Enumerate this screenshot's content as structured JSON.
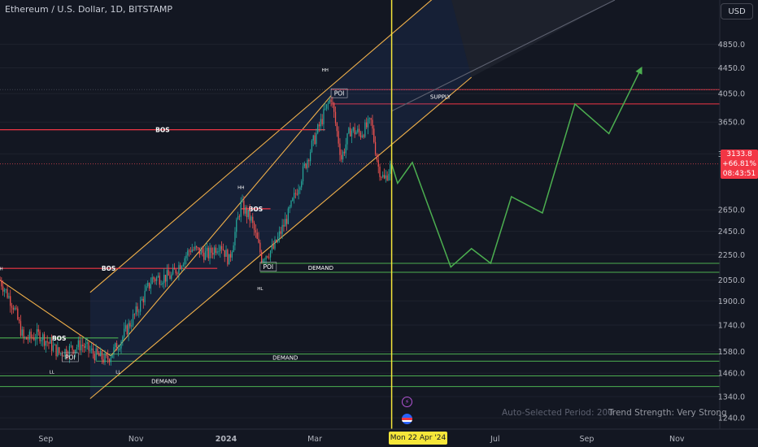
{
  "header": {
    "title": "Ethereum / U.S. Dollar, 1D, BITSTAMP",
    "currency": "USD"
  },
  "price_badge": {
    "price": "3133.8",
    "change": "+66.81%",
    "countdown": "08:43:51"
  },
  "crosshair": {
    "date_label": "Mon 22 Apr '24"
  },
  "footer": {
    "period": "Auto-Selected Period: 200",
    "trend": "Trend Strength: Very Strong"
  },
  "colors": {
    "background": "#131722",
    "bull": "#26a69a",
    "bear": "#ef5350",
    "channel": "#f0b04a",
    "projection": "#4caf50",
    "bos_red": "#f23645",
    "zone_green": "#4caf50",
    "crosshair": "#f5e63a"
  },
  "icons": {
    "event_1": "lightning-icon",
    "event_2": "flag-icon"
  },
  "chart_data": {
    "type": "candlestick",
    "symbol": "Ethereum / U.S. Dollar",
    "interval": "1D",
    "exchange": "BITSTAMP",
    "x_axis": {
      "type": "date",
      "range": [
        "2023-08-01",
        "2024-11-30"
      ],
      "ticks": [
        "Sep",
        "Nov",
        "2024",
        "Mar",
        "Jul",
        "Sep",
        "Nov"
      ]
    },
    "y_axis": {
      "scale": "log",
      "range": [
        1190,
        5700
      ],
      "ticks": [
        1240,
        1340,
        1460,
        1580,
        1740,
        1900,
        2050,
        2250,
        2450,
        2650,
        3250,
        3650,
        4050,
        4450,
        4850
      ]
    },
    "price_path": [
      [
        "2023-08-01",
        2050
      ],
      [
        "2023-08-10",
        1870
      ],
      [
        "2023-08-17",
        1650
      ],
      [
        "2023-08-28",
        1680
      ],
      [
        "2023-09-10",
        1570
      ],
      [
        "2023-09-25",
        1620
      ],
      [
        "2023-10-05",
        1560
      ],
      [
        "2023-10-12",
        1530
      ],
      [
        "2023-10-20",
        1620
      ],
      [
        "2023-11-01",
        1820
      ],
      [
        "2023-11-12",
        2060
      ],
      [
        "2023-11-25",
        2080
      ],
      [
        "2023-12-08",
        2300
      ],
      [
        "2023-12-20",
        2250
      ],
      [
        "2023-12-28",
        2350
      ],
      [
        "2024-01-03",
        2200
      ],
      [
        "2024-01-11",
        2700
      ],
      [
        "2024-01-18",
        2550
      ],
      [
        "2024-01-25",
        2230
      ],
      [
        "2024-02-02",
        2300
      ],
      [
        "2024-02-12",
        2600
      ],
      [
        "2024-02-20",
        2950
      ],
      [
        "2024-02-28",
        3350
      ],
      [
        "2024-03-08",
        3800
      ],
      [
        "2024-03-12",
        4000
      ],
      [
        "2024-03-19",
        3200
      ],
      [
        "2024-03-25",
        3550
      ],
      [
        "2024-04-01",
        3500
      ],
      [
        "2024-04-08",
        3650
      ],
      [
        "2024-04-13",
        3100
      ],
      [
        "2024-04-17",
        2950
      ],
      [
        "2024-04-22",
        3133.8
      ]
    ],
    "channel": {
      "upper": [
        [
          "2023-10-01",
          1960
        ],
        [
          "2024-05-30",
          6000
        ]
      ],
      "lower": [
        [
          "2023-10-01",
          1330
        ],
        [
          "2024-06-15",
          4300
        ]
      ],
      "outer": [
        [
          "2024-04-22",
          3800
        ],
        [
          "2024-09-20",
          5700
        ]
      ],
      "inner_trendline": [
        [
          "2023-10-15",
          1555
        ],
        [
          "2024-03-12",
          4020
        ]
      ],
      "downtrend": [
        [
          "2023-08-01",
          2050
        ],
        [
          "2023-10-15",
          1555
        ]
      ]
    },
    "levels": [
      {
        "label": "BOS",
        "price": 2140,
        "from": "2023-08-01",
        "to": "2023-12-26",
        "color": "#f23645"
      },
      {
        "label": "BOS",
        "price": 1660,
        "from": "2023-08-01",
        "to": "2023-10-20",
        "color": "#4caf50"
      },
      {
        "label": "BOS",
        "price": 3550,
        "from": "2023-08-01",
        "to": "2024-03-08",
        "color": "#f23645"
      },
      {
        "label": "BOS",
        "price": 2660,
        "from": "2024-01-11",
        "to": "2024-01-31",
        "color": "#f23645"
      }
    ],
    "zones": [
      {
        "label": "SUPPLY",
        "top": 4110,
        "bottom": 3900,
        "from": "2024-03-12",
        "to": "2024-11-30",
        "color": "#f23645"
      },
      {
        "label": "DEMAND",
        "top": 2180,
        "bottom": 2110,
        "from": "2024-01-24",
        "to": "2024-11-30",
        "color": "#4caf50"
      },
      {
        "label": "DEMAND",
        "top": 1565,
        "bottom": 1525,
        "from": "2023-10-05",
        "to": "2024-11-30",
        "color": "#4caf50"
      },
      {
        "label": "DEMAND",
        "top": 1445,
        "bottom": 1390,
        "from": "2023-08-01",
        "to": "2024-11-30",
        "color": "#4caf50"
      }
    ],
    "annotations": [
      {
        "text": "HH",
        "date": "2024-03-08",
        "price": 4420
      },
      {
        "text": "HH",
        "date": "2024-01-11",
        "price": 2880
      },
      {
        "text": "HL",
        "date": "2024-01-24",
        "price": 1990
      },
      {
        "text": "LL",
        "date": "2023-09-05",
        "price": 1470
      },
      {
        "text": "LL",
        "date": "2023-10-20",
        "price": 1470
      },
      {
        "text": "LH",
        "date": "2023-08-01",
        "price": 2140
      },
      {
        "text": "POI",
        "date": "2024-03-12",
        "price": 4050
      },
      {
        "text": "POI",
        "date": "2024-01-24",
        "price": 2150
      },
      {
        "text": "POI",
        "date": "2023-09-12",
        "price": 1545
      }
    ],
    "projection": [
      [
        "2024-04-22",
        3133.8
      ],
      [
        "2024-04-26",
        2920
      ],
      [
        "2024-05-06",
        3150
      ],
      [
        "2024-06-01",
        2150
      ],
      [
        "2024-06-15",
        2300
      ],
      [
        "2024-06-28",
        2180
      ],
      [
        "2024-07-12",
        2780
      ],
      [
        "2024-08-02",
        2620
      ],
      [
        "2024-08-24",
        3900
      ],
      [
        "2024-09-16",
        3500
      ],
      [
        "2024-10-08",
        4450
      ]
    ],
    "last_price": 3133.8,
    "crosshair_date": "2024-04-22"
  }
}
